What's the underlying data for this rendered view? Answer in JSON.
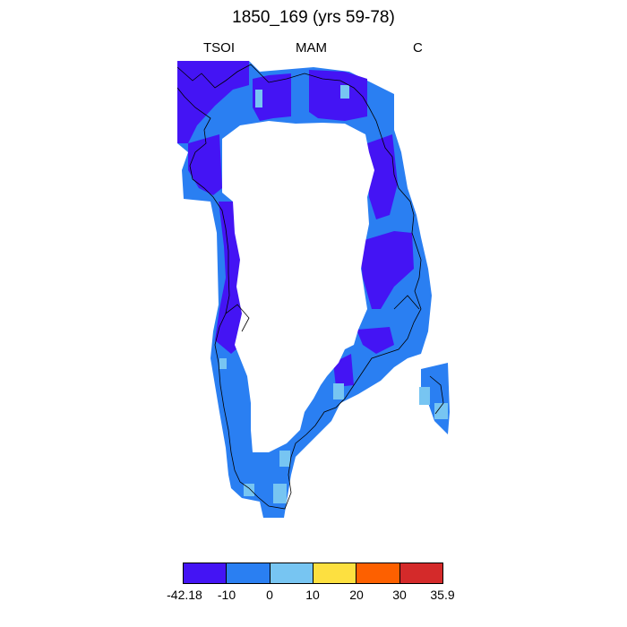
{
  "title": "1850_169 (yrs 59-78)",
  "subtitles": {
    "left": "TSOI",
    "center": "MAM",
    "right": "C"
  },
  "colorbar": {
    "labels": [
      "-42.18",
      "-10",
      "0",
      "10",
      "20",
      "30",
      "35.9"
    ],
    "colors": [
      "#4414f4",
      "#2a7ff2",
      "#77c5f2",
      "#fde040",
      "#fd6000",
      "#d42a2a"
    ]
  }
}
